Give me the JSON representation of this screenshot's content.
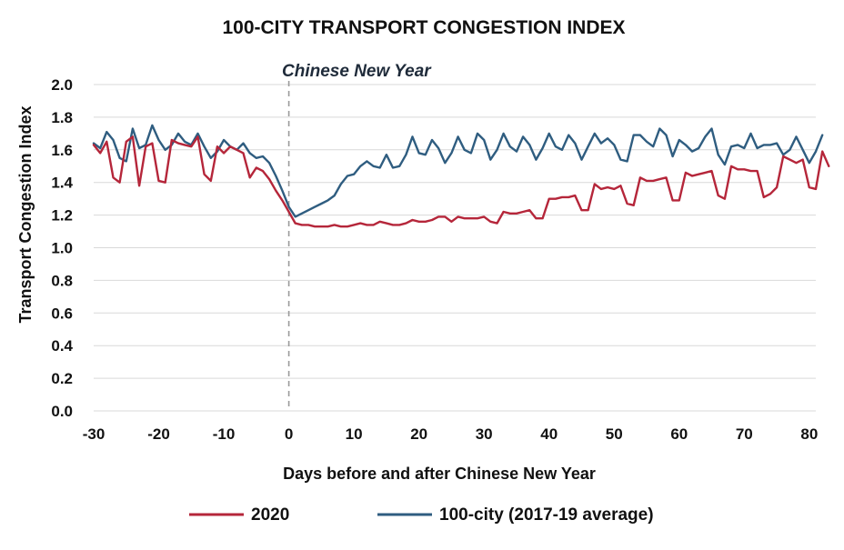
{
  "chart_data": {
    "type": "line",
    "title": "100-CITY TRANSPORT CONGESTION INDEX",
    "xlabel": "Days before and after Chinese New Year",
    "ylabel": "Transport Congestion Index",
    "xlim": [
      -30,
      81
    ],
    "ylim": [
      0,
      2.0
    ],
    "xticks": [
      -30,
      -20,
      -10,
      0,
      10,
      20,
      30,
      40,
      50,
      60,
      70,
      80
    ],
    "yticks": [
      "0.0",
      "0.2",
      "0.4",
      "0.6",
      "0.8",
      "1.0",
      "1.2",
      "1.4",
      "1.6",
      "1.8",
      "2.0"
    ],
    "grid": true,
    "legend_position": "bottom",
    "annotation": {
      "text": "Chinese New Year",
      "x": 0
    },
    "x_start": -30,
    "series": [
      {
        "name": "2020",
        "color": "#b5263a",
        "values": [
          1.63,
          1.58,
          1.65,
          1.43,
          1.4,
          1.65,
          1.68,
          1.38,
          1.62,
          1.64,
          1.41,
          1.4,
          1.66,
          1.64,
          1.63,
          1.62,
          1.68,
          1.45,
          1.41,
          1.62,
          1.58,
          1.62,
          1.6,
          1.58,
          1.43,
          1.49,
          1.47,
          1.42,
          1.35,
          1.29,
          1.22,
          1.15,
          1.14,
          1.14,
          1.13,
          1.13,
          1.13,
          1.14,
          1.13,
          1.13,
          1.14,
          1.15,
          1.14,
          1.14,
          1.16,
          1.15,
          1.14,
          1.14,
          1.15,
          1.17,
          1.16,
          1.16,
          1.17,
          1.19,
          1.19,
          1.16,
          1.19,
          1.18,
          1.18,
          1.18,
          1.19,
          1.16,
          1.15,
          1.22,
          1.21,
          1.21,
          1.22,
          1.23,
          1.18,
          1.18,
          1.3,
          1.3,
          1.31,
          1.31,
          1.32,
          1.23,
          1.23,
          1.39,
          1.36,
          1.37,
          1.36,
          1.38,
          1.27,
          1.26,
          1.43,
          1.41,
          1.41,
          1.42,
          1.43,
          1.29,
          1.29,
          1.46,
          1.44,
          1.45,
          1.46,
          1.47,
          1.32,
          1.3,
          1.5,
          1.48,
          1.48,
          1.47,
          1.47,
          1.31,
          1.33,
          1.37,
          1.56,
          1.54,
          1.52,
          1.54,
          1.37,
          1.36,
          1.59,
          1.5
        ]
      },
      {
        "name": "100-city (2017-19 average)",
        "color": "#2f5d80",
        "values": [
          1.64,
          1.61,
          1.71,
          1.66,
          1.55,
          1.53,
          1.73,
          1.61,
          1.63,
          1.75,
          1.66,
          1.6,
          1.63,
          1.7,
          1.65,
          1.63,
          1.7,
          1.62,
          1.55,
          1.59,
          1.66,
          1.62,
          1.6,
          1.64,
          1.58,
          1.55,
          1.56,
          1.52,
          1.44,
          1.35,
          1.25,
          1.19,
          1.21,
          1.23,
          1.25,
          1.27,
          1.29,
          1.32,
          1.39,
          1.44,
          1.45,
          1.5,
          1.53,
          1.5,
          1.49,
          1.57,
          1.49,
          1.5,
          1.57,
          1.68,
          1.58,
          1.57,
          1.66,
          1.61,
          1.52,
          1.58,
          1.68,
          1.6,
          1.58,
          1.7,
          1.66,
          1.54,
          1.6,
          1.7,
          1.62,
          1.59,
          1.68,
          1.63,
          1.54,
          1.61,
          1.7,
          1.62,
          1.6,
          1.69,
          1.64,
          1.54,
          1.62,
          1.7,
          1.64,
          1.67,
          1.63,
          1.54,
          1.53,
          1.69,
          1.69,
          1.65,
          1.62,
          1.73,
          1.69,
          1.56,
          1.66,
          1.63,
          1.59,
          1.61,
          1.68,
          1.73,
          1.57,
          1.51,
          1.62,
          1.63,
          1.61,
          1.7,
          1.61,
          1.63,
          1.63,
          1.64,
          1.57,
          1.6,
          1.68,
          1.6,
          1.52,
          1.59,
          1.69
        ]
      }
    ]
  }
}
